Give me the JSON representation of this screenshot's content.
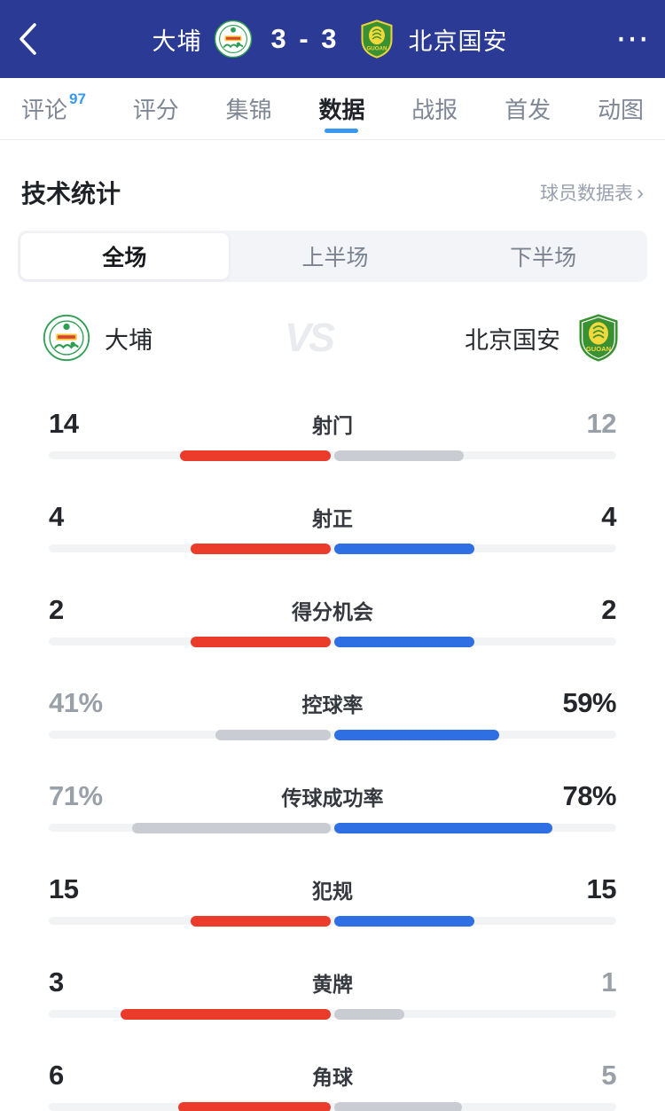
{
  "header": {
    "home_team": "大埔",
    "score": "3 - 3",
    "away_team": "北京国安",
    "more_icon": "⋯"
  },
  "tabs": {
    "items": [
      {
        "label": "评论",
        "badge": "97",
        "active": false
      },
      {
        "label": "评分",
        "active": false
      },
      {
        "label": "集锦",
        "active": false
      },
      {
        "label": "数据",
        "active": true
      },
      {
        "label": "战报",
        "active": false
      },
      {
        "label": "首发",
        "active": false
      },
      {
        "label": "动图",
        "active": false
      }
    ]
  },
  "section": {
    "title": "技术统计",
    "link_label": "球员数据表",
    "link_arrow": "›"
  },
  "segmented": {
    "items": [
      {
        "label": "全场",
        "active": true
      },
      {
        "label": "上半场",
        "active": false
      },
      {
        "label": "下半场",
        "active": false
      }
    ]
  },
  "matchup": {
    "home_name": "大埔",
    "vs_label": "VS",
    "away_name": "北京国安"
  },
  "stats": [
    {
      "label": "射门",
      "home": "14",
      "away": "12"
    },
    {
      "label": "射正",
      "home": "4",
      "away": "4"
    },
    {
      "label": "得分机会",
      "home": "2",
      "away": "2"
    },
    {
      "label": "控球率",
      "home": "41%",
      "away": "59%"
    },
    {
      "label": "传球成功率",
      "home": "71%",
      "away": "78%"
    },
    {
      "label": "犯规",
      "home": "15",
      "away": "15"
    },
    {
      "label": "黄牌",
      "home": "3",
      "away": "1"
    },
    {
      "label": "角球",
      "home": "6",
      "away": "5"
    }
  ],
  "chart_data": {
    "type": "bar",
    "title": "技术统计 - 全场",
    "categories": [
      "射门",
      "射正",
      "得分机会",
      "控球率",
      "传球成功率",
      "犯规",
      "黄牌",
      "角球"
    ],
    "series": [
      {
        "name": "大埔",
        "values": [
          14,
          4,
          2,
          "41%",
          "71%",
          15,
          3,
          6
        ]
      },
      {
        "name": "北京国安",
        "values": [
          12,
          4,
          2,
          "59%",
          "78%",
          15,
          1,
          5
        ]
      }
    ],
    "legend_position": "none",
    "layout": "center-anchored horizontal duel bars"
  },
  "colors": {
    "header_bg": "#2b3a94",
    "home_bar": "#ea3b2b",
    "away_bar": "#2f6fe4",
    "lose_bar": "#c9ccd2",
    "track": "#f2f3f5",
    "accent_blue": "#3898f0"
  }
}
